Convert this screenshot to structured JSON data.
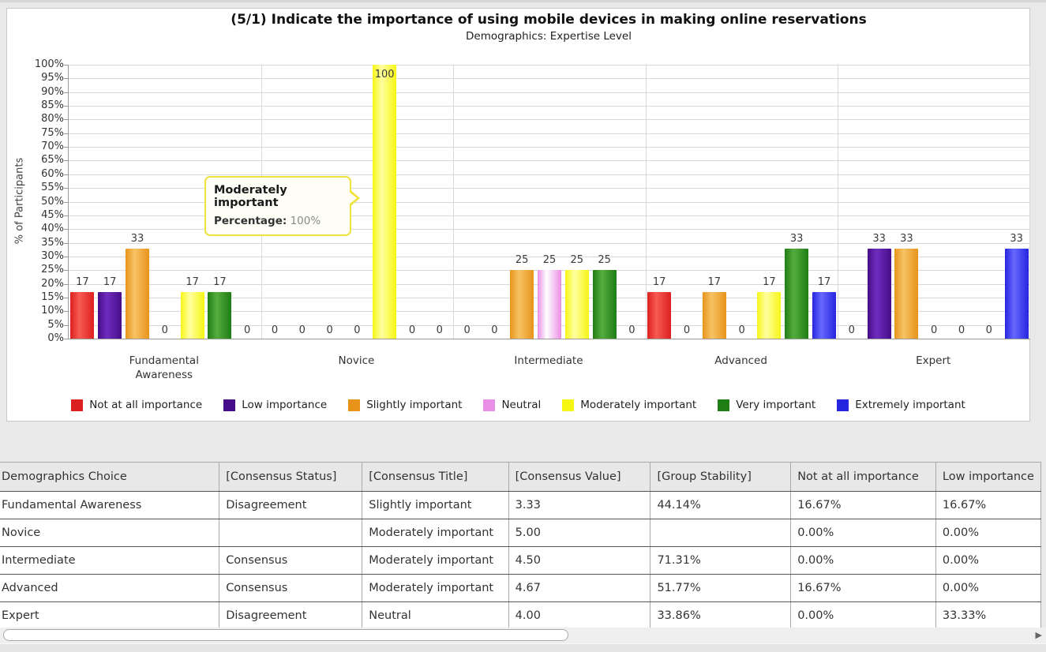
{
  "chart": {
    "title": "(5/1) Indicate the importance of using mobile devices in making online reservations",
    "subtitle": "Demographics: Expertise Level",
    "ylabel": "% of Participants"
  },
  "chart_data": {
    "type": "bar",
    "title": "(5/1) Indicate the importance of using mobile devices in making online reservations",
    "subtitle": "Demographics: Expertise Level",
    "xlabel": "",
    "ylabel": "% of Participants",
    "ylim": [
      0,
      100
    ],
    "ytick_step": 5,
    "ytick_suffix": "%",
    "grid": true,
    "legend_position": "bottom",
    "categories": [
      "Fundamental\nAwareness",
      "Novice",
      "Intermediate",
      "Advanced",
      "Expert"
    ],
    "series": [
      {
        "name": "Not at all importance",
        "color": "#dc2020",
        "color_light": "#f75b52",
        "values": [
          17,
          0,
          0,
          17,
          0
        ]
      },
      {
        "name": "Low importance",
        "color": "#450d88",
        "color_light": "#6f2cbe",
        "values": [
          17,
          0,
          0,
          0,
          33
        ]
      },
      {
        "name": "Slightly important",
        "color": "#e8941a",
        "color_light": "#f7c264",
        "values": [
          33,
          0,
          25,
          17,
          33
        ]
      },
      {
        "name": "Neutral",
        "color": "#e98fe5",
        "color_light": "#ffffff",
        "values": [
          0,
          0,
          25,
          0,
          0
        ]
      },
      {
        "name": "Moderately important",
        "color": "#f6f614",
        "color_light": "#ffffa0",
        "values": [
          17,
          100,
          25,
          17,
          0
        ]
      },
      {
        "name": "Very important",
        "color": "#1e7d13",
        "color_light": "#55ad3e",
        "values": [
          17,
          0,
          25,
          33,
          0
        ]
      },
      {
        "name": "Extremely important",
        "color": "#2525df",
        "color_light": "#6868ff",
        "values": [
          0,
          0,
          0,
          17,
          33
        ]
      }
    ]
  },
  "tooltip": {
    "title": "Moderately important",
    "label": "Percentage:",
    "value": "100%"
  },
  "table": {
    "headers": [
      "Demographics Choice",
      "[Consensus Status]",
      "[Consensus Title]",
      "[Consensus Value]",
      "[Group Stability]",
      "Not at all importance",
      "Low importance"
    ],
    "rows": [
      [
        "Fundamental Awareness",
        "Disagreement",
        "Slightly important",
        "3.33",
        "44.14%",
        "16.67%",
        "16.67%"
      ],
      [
        "Novice",
        "",
        "Moderately important",
        "5.00",
        "",
        "0.00%",
        "0.00%"
      ],
      [
        "Intermediate",
        "Consensus",
        "Moderately important",
        "4.50",
        "71.31%",
        "0.00%",
        "0.00%"
      ],
      [
        "Advanced",
        "Consensus",
        "Moderately important",
        "4.67",
        "51.77%",
        "16.67%",
        "0.00%"
      ],
      [
        "Expert",
        "Disagreement",
        "Neutral",
        "4.00",
        "33.86%",
        "0.00%",
        "33.33%"
      ]
    ]
  },
  "scrollbar": {
    "right_arrow": "▶"
  }
}
